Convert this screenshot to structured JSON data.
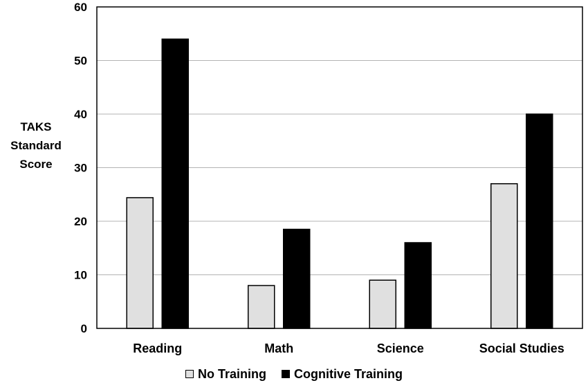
{
  "chart_data": {
    "type": "bar",
    "categories": [
      "Reading",
      "Math",
      "Science",
      "Social Studies"
    ],
    "series": [
      {
        "name": "No Training",
        "color": "#e0e0e0",
        "values": [
          24.4,
          8,
          9,
          27
        ]
      },
      {
        "name": "Cognitive Training",
        "color": "#000000",
        "values": [
          54,
          18.5,
          16,
          40
        ]
      }
    ],
    "ylabel": [
      "TAKS",
      "Standard",
      "Score"
    ],
    "ylim": [
      0,
      60
    ],
    "yticks": [
      0,
      10,
      20,
      30,
      40,
      50,
      60
    ],
    "grid": true,
    "legend_position": "bottom-center"
  }
}
